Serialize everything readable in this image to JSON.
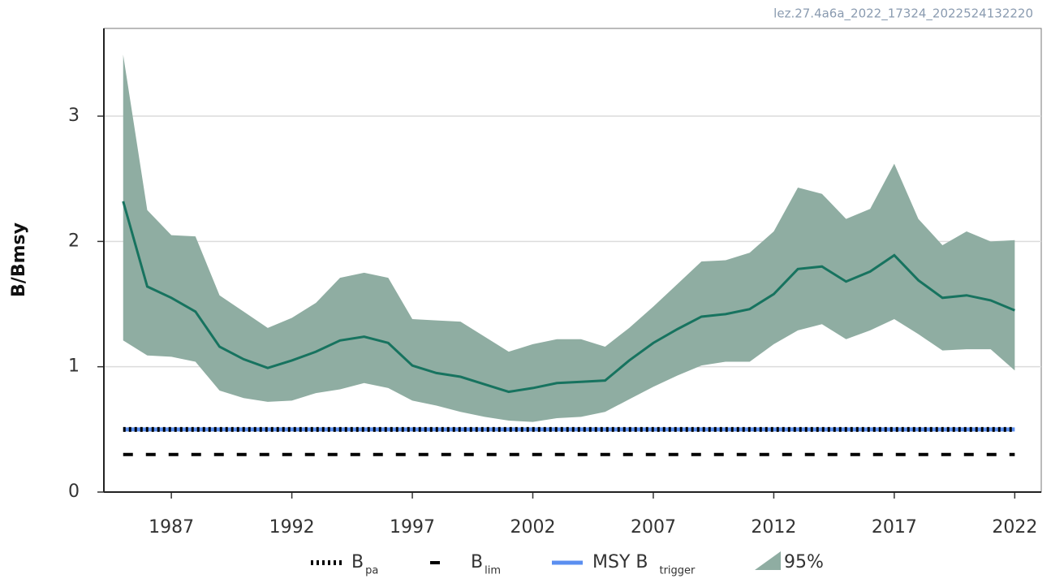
{
  "chart_data": {
    "type": "line",
    "watermark": "lez.27.4a6a_2022_17324_2022524132220",
    "y_label": "B/Bmsy",
    "x": [
      1985,
      1986,
      1987,
      1988,
      1989,
      1990,
      1991,
      1992,
      1993,
      1994,
      1995,
      1996,
      1997,
      1998,
      1999,
      2000,
      2001,
      2002,
      2003,
      2004,
      2005,
      2006,
      2007,
      2008,
      2009,
      2010,
      2011,
      2012,
      2013,
      2014,
      2015,
      2016,
      2017,
      2018,
      2019,
      2020,
      2021,
      2022
    ],
    "values": [
      2.32,
      1.64,
      1.55,
      1.44,
      1.16,
      1.06,
      0.99,
      1.05,
      1.12,
      1.21,
      1.24,
      1.19,
      1.01,
      0.95,
      0.92,
      0.86,
      0.8,
      0.83,
      0.87,
      0.88,
      0.89,
      1.05,
      1.19,
      1.3,
      1.4,
      1.42,
      1.46,
      1.58,
      1.78,
      1.8,
      1.68,
      1.76,
      1.89,
      1.69,
      1.55,
      1.57,
      1.53,
      1.45
    ],
    "color": "#17735f",
    "band": {
      "name": "95%",
      "color": "#8fada2",
      "lower": [
        1.21,
        1.09,
        1.08,
        1.04,
        0.81,
        0.75,
        0.72,
        0.73,
        0.79,
        0.82,
        0.87,
        0.83,
        0.73,
        0.69,
        0.64,
        0.6,
        0.57,
        0.56,
        0.59,
        0.6,
        0.64,
        0.74,
        0.84,
        0.93,
        1.01,
        1.04,
        1.04,
        1.18,
        1.29,
        1.34,
        1.22,
        1.29,
        1.38,
        1.26,
        1.13,
        1.14,
        1.14,
        0.97
      ],
      "upper": [
        3.49,
        2.25,
        2.05,
        2.04,
        1.57,
        1.44,
        1.31,
        1.39,
        1.51,
        1.71,
        1.75,
        1.71,
        1.38,
        1.37,
        1.36,
        1.24,
        1.12,
        1.18,
        1.22,
        1.22,
        1.16,
        1.31,
        1.48,
        1.66,
        1.84,
        1.85,
        1.91,
        2.08,
        2.43,
        2.38,
        2.18,
        2.26,
        2.62,
        2.18,
        1.97,
        2.08,
        2.0,
        2.01
      ]
    },
    "reference_lines": [
      {
        "name": "B",
        "subscript": "pa",
        "value": 0.5,
        "color": "#000000",
        "style": "dotted"
      },
      {
        "name": "B",
        "subscript": "lim",
        "value": 0.3,
        "color": "#000000",
        "style": "dashed"
      },
      {
        "name": "MSY B",
        "subscript": "trigger",
        "value": 0.5,
        "color": "#5b8ff0",
        "style": "solid"
      }
    ],
    "xlim": [
      1984.2,
      2023.1
    ],
    "xticks": [
      1987,
      1992,
      1997,
      2002,
      2007,
      2012,
      2017,
      2022
    ],
    "ylim": [
      0,
      3.7
    ],
    "yticks": [
      0,
      1,
      2,
      3
    ],
    "grid": true
  }
}
